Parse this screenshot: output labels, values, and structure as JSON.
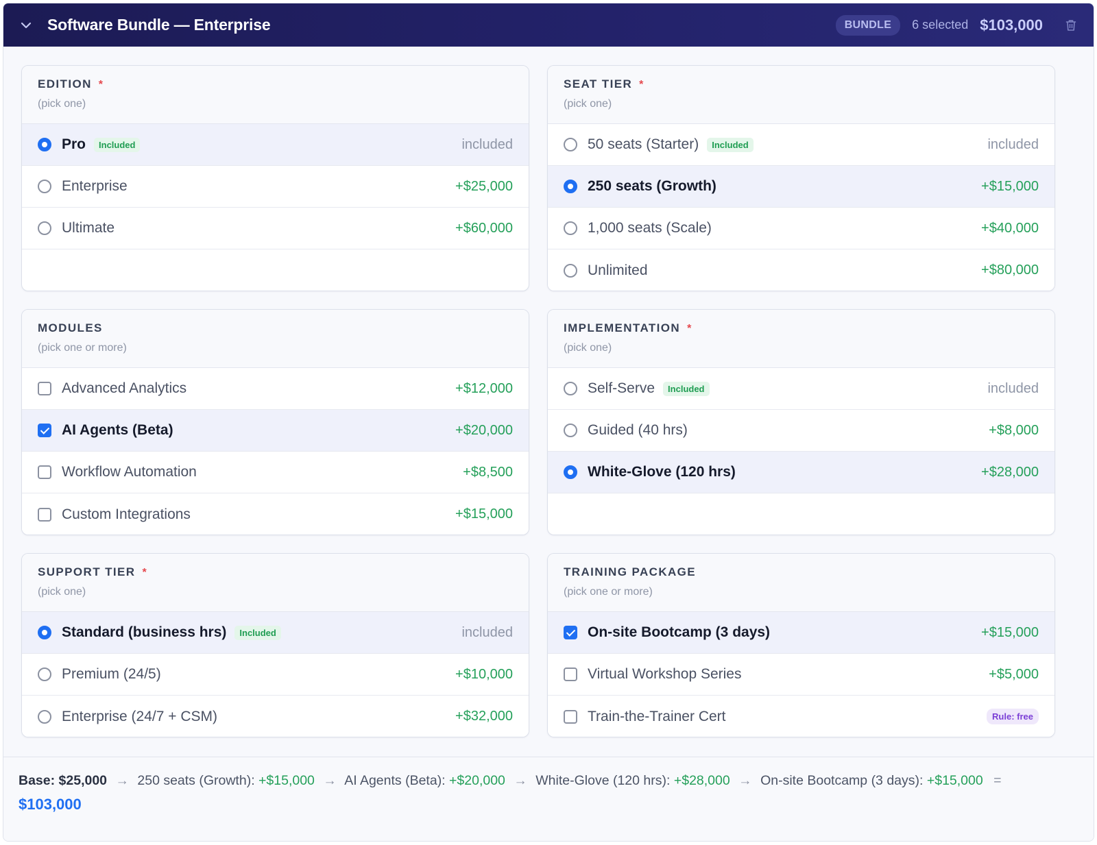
{
  "header": {
    "title": "Software Bundle — Enterprise",
    "badge": "BUNDLE",
    "selected_count": "6 selected",
    "total": "$103,000",
    "collapse_icon": "chevron-down-icon",
    "delete_icon": "trash-icon"
  },
  "groups": [
    {
      "title": "EDITION",
      "required": "*",
      "subtitle": "(pick one)",
      "type": "radio",
      "options": [
        {
          "label": "Pro",
          "badge": "Included",
          "price": "included",
          "selected": true
        },
        {
          "label": "Enterprise",
          "price": "+$25,000",
          "selected": false
        },
        {
          "label": "Ultimate",
          "price": "+$60,000",
          "selected": false
        }
      ]
    },
    {
      "title": "SEAT TIER",
      "required": "*",
      "subtitle": "(pick one)",
      "type": "radio",
      "options": [
        {
          "label": "50 seats (Starter)",
          "badge": "Included",
          "price": "included",
          "selected": false
        },
        {
          "label": "250 seats (Growth)",
          "price": "+$15,000",
          "selected": true
        },
        {
          "label": "1,000 seats (Scale)",
          "price": "+$40,000",
          "selected": false
        },
        {
          "label": "Unlimited",
          "price": "+$80,000",
          "selected": false
        }
      ]
    },
    {
      "title": "MODULES",
      "subtitle": "(pick one or more)",
      "type": "checkbox",
      "options": [
        {
          "label": "Advanced Analytics",
          "price": "+$12,000",
          "selected": false
        },
        {
          "label": "AI Agents (Beta)",
          "price": "+$20,000",
          "selected": true
        },
        {
          "label": "Workflow Automation",
          "price": "+$8,500",
          "selected": false
        },
        {
          "label": "Custom Integrations",
          "price": "+$15,000",
          "selected": false
        }
      ]
    },
    {
      "title": "IMPLEMENTATION",
      "required": "*",
      "subtitle": "(pick one)",
      "type": "radio",
      "options": [
        {
          "label": "Self-Serve",
          "badge": "Included",
          "price": "included",
          "selected": false
        },
        {
          "label": "Guided (40 hrs)",
          "price": "+$8,000",
          "selected": false
        },
        {
          "label": "White-Glove (120 hrs)",
          "price": "+$28,000",
          "selected": true
        }
      ]
    },
    {
      "title": "SUPPORT TIER",
      "required": "*",
      "subtitle": "(pick one)",
      "type": "radio",
      "options": [
        {
          "label": "Standard (business hrs)",
          "badge": "Included",
          "price": "included",
          "selected": true
        },
        {
          "label": "Premium (24/5)",
          "price": "+$10,000",
          "selected": false
        },
        {
          "label": "Enterprise (24/7 + CSM)",
          "price": "+$32,000",
          "selected": false
        }
      ]
    },
    {
      "title": "TRAINING PACKAGE",
      "subtitle": "(pick one or more)",
      "type": "checkbox",
      "options": [
        {
          "label": "On-site Bootcamp (3 days)",
          "price": "+$15,000",
          "selected": true
        },
        {
          "label": "Virtual Workshop Series",
          "price": "+$5,000",
          "selected": false
        },
        {
          "label": "Train-the-Trainer Cert",
          "rule_badge": "Rule: free",
          "selected": false
        }
      ]
    }
  ],
  "footer": {
    "base": "Base: $25,000",
    "arrow": "→",
    "steps": [
      {
        "label": "250 seats (Growth):",
        "amount": "+$15,000"
      },
      {
        "label": "AI Agents (Beta):",
        "amount": "+$20,000"
      },
      {
        "label": "White-Glove (120 hrs):",
        "amount": "+$28,000"
      },
      {
        "label": "On-site Bootcamp (3 days):",
        "amount": "+$15,000"
      }
    ],
    "equals": "=",
    "total": "$103,000"
  },
  "colors": {
    "header_bg": "#1c1b54",
    "accent_blue": "#1f6ff2",
    "price_green": "#25a05a",
    "required_red": "#e5484d",
    "rule_purple": "#7b3fd6"
  }
}
